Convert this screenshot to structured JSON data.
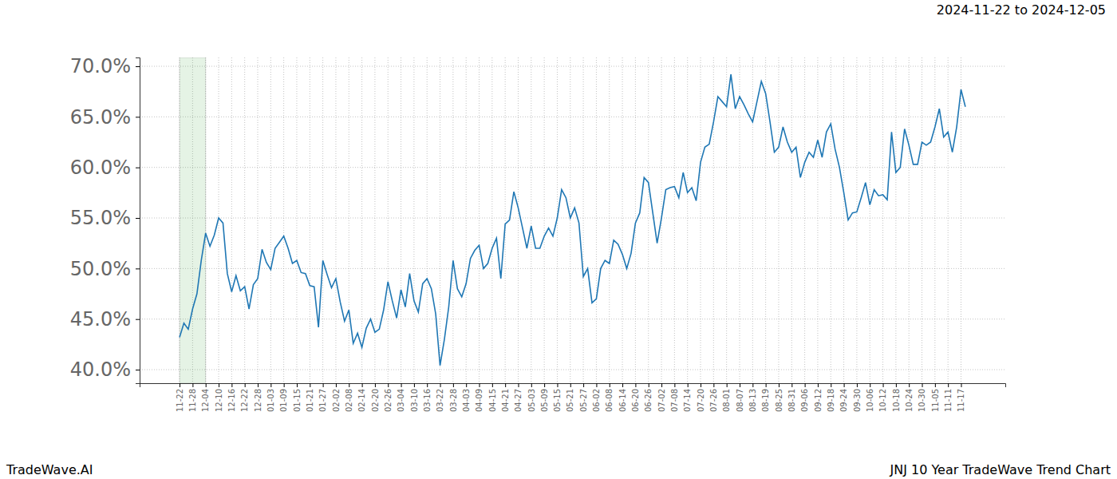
{
  "chart_data": {
    "type": "line",
    "title": "2024-11-22 to 2024-12-05",
    "subtitle": "JNJ 10 Year TradeWave Trend Chart",
    "annotations": [
      "TradeWave.AI"
    ],
    "highlight": {
      "start": "11-22",
      "end": "12-04"
    },
    "categories": [
      "11-22",
      null,
      null,
      "11-28",
      null,
      null,
      "12-04",
      null,
      null,
      "12-10",
      null,
      null,
      "12-16",
      null,
      null,
      "12-22",
      null,
      null,
      "12-28",
      null,
      null,
      "01-03",
      null,
      null,
      "01-09",
      null,
      null,
      "01-15",
      null,
      null,
      "01-21",
      null,
      null,
      "01-27",
      null,
      null,
      "02-02",
      null,
      null,
      "02-08",
      null,
      null,
      "02-14",
      null,
      null,
      "02-20",
      null,
      null,
      "02-26",
      null,
      null,
      "03-04",
      null,
      null,
      "03-10",
      null,
      null,
      "03-16",
      null,
      null,
      "03-22",
      null,
      null,
      "03-28",
      null,
      null,
      "04-03",
      null,
      null,
      "04-09",
      null,
      null,
      "04-15",
      null,
      null,
      "04-21",
      null,
      null,
      "04-27",
      null,
      null,
      "05-03",
      null,
      null,
      "05-09",
      null,
      null,
      "05-15",
      null,
      null,
      "05-21",
      null,
      null,
      "05-27",
      null,
      null,
      "06-02",
      null,
      null,
      "06-08",
      null,
      null,
      "06-14",
      null,
      null,
      "06-20",
      null,
      null,
      "06-26",
      null,
      null,
      "07-02",
      null,
      null,
      "07-08",
      null,
      null,
      "07-14",
      null,
      null,
      "07-20",
      null,
      null,
      "07-26",
      null,
      null,
      "08-01",
      null,
      null,
      "08-07",
      null,
      null,
      "08-13",
      null,
      null,
      "08-19",
      null,
      null,
      "08-25",
      null,
      null,
      "08-31",
      null,
      null,
      "09-06",
      null,
      null,
      "09-12",
      null,
      null,
      "09-18",
      null,
      null,
      "09-24",
      null,
      null,
      "09-30",
      null,
      null,
      "10-06",
      null,
      null,
      "10-12",
      null,
      null,
      "10-18",
      null,
      null,
      "10-24",
      null,
      null,
      "10-30",
      null,
      null,
      "11-05",
      null,
      null,
      "11-11",
      null,
      null,
      "11-17",
      null
    ],
    "values": [
      43.2,
      44.6,
      44.0,
      46.0,
      47.5,
      50.8,
      53.5,
      52.2,
      53.3,
      55.0,
      54.5,
      49.5,
      47.7,
      49.3,
      47.8,
      48.2,
      46.0,
      48.4,
      49.0,
      51.9,
      50.6,
      49.9,
      52.0,
      52.6,
      53.2,
      52.0,
      50.5,
      50.8,
      49.6,
      49.5,
      48.3,
      48.2,
      44.2,
      50.8,
      49.4,
      48.1,
      49.0,
      46.7,
      44.8,
      45.9,
      42.6,
      43.6,
      42.2,
      44.1,
      45.0,
      43.7,
      44.0,
      45.9,
      48.7,
      46.8,
      45.1,
      47.9,
      46.2,
      49.5,
      46.8,
      45.7,
      48.5,
      49.0,
      48.0,
      45.5,
      40.4,
      43.0,
      46.2,
      50.8,
      48.0,
      47.2,
      48.5,
      51.0,
      51.8,
      52.3,
      50.0,
      50.5,
      52.0,
      53.0,
      49.0,
      54.4,
      54.8,
      57.6,
      56.0,
      54.0,
      52.0,
      54.2,
      52.0,
      52.0,
      53.2,
      54.0,
      53.2,
      55.0,
      57.8,
      57.0,
      55.0,
      56.0,
      54.5,
      49.2,
      50.0,
      46.6,
      47.0,
      50.0,
      50.8,
      50.5,
      52.8,
      52.4,
      51.4,
      50.0,
      51.5,
      54.5,
      55.5,
      59.0,
      58.5,
      55.5,
      52.5,
      55.0,
      57.8,
      58.0,
      58.1,
      57.0,
      59.5,
      57.5,
      58.0,
      56.7,
      60.5,
      62.0,
      62.3,
      64.5,
      67.0,
      66.5,
      66.0,
      69.2,
      65.8,
      67.0,
      66.2,
      65.3,
      64.5,
      66.5,
      68.5,
      67.3,
      64.5,
      61.5,
      62.0,
      64.0,
      62.5,
      61.5,
      62.0,
      59.0,
      60.5,
      61.5,
      61.0,
      62.7,
      61.0,
      63.5,
      64.3,
      61.8,
      60.0,
      57.5,
      54.8,
      55.5,
      55.6,
      57.0,
      58.5,
      56.3,
      57.8,
      57.2,
      57.3,
      56.8,
      63.5,
      59.5,
      60.0,
      63.8,
      62.2,
      60.3,
      60.3,
      62.5,
      62.2,
      62.5,
      64.0,
      65.8,
      63.0,
      63.5,
      61.5,
      64.0,
      67.7,
      66.0
    ],
    "color": "#1f77b4",
    "ylim": [
      38.66,
      70.87
    ],
    "yticks": [
      {
        "value": 40,
        "label": "40.0%"
      },
      {
        "value": 45,
        "label": "45.0%"
      },
      {
        "value": 50,
        "label": "50.0%"
      },
      {
        "value": 55,
        "label": "55.0%"
      },
      {
        "value": 60,
        "label": "60.0%"
      },
      {
        "value": 65,
        "label": "65.0%"
      },
      {
        "value": 70,
        "label": "70.0%"
      }
    ],
    "grid": true
  }
}
